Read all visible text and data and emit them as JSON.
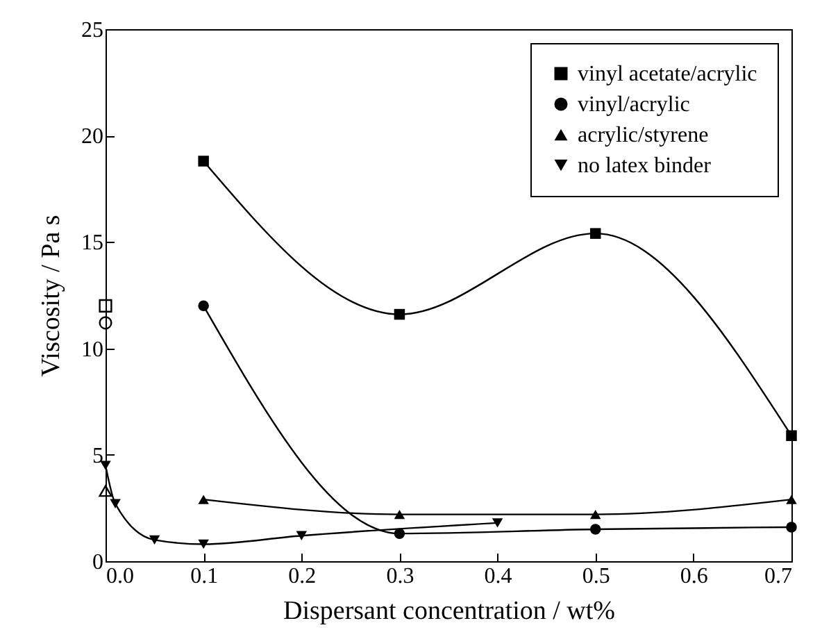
{
  "chart_data": {
    "type": "line",
    "xlabel": "Dispersant concentration / wt%",
    "ylabel": "Viscosity / Pa s",
    "xlim": [
      0,
      0.7
    ],
    "ylim": [
      0,
      25
    ],
    "xticks": [
      {
        "value": 0,
        "label": "0.0"
      },
      0.1,
      0.2,
      0.3,
      0.4,
      0.5,
      0.6,
      0.7
    ],
    "yticks": [
      0,
      5,
      10,
      15,
      20,
      25
    ],
    "grid": false,
    "legend": "top right",
    "line_style": "solid",
    "series": [
      {
        "name": "vinyl acetate/acrylic",
        "marker": "square",
        "color": "#000000",
        "x": [
          0.1,
          0.3,
          0.5,
          0.7
        ],
        "values": [
          18.8,
          11.6,
          15.4,
          5.9
        ]
      },
      {
        "name": "vinyl/acrylic",
        "marker": "circle",
        "color": "#000000",
        "x": [
          0.1,
          0.3,
          0.5,
          0.7
        ],
        "values": [
          12.0,
          1.3,
          1.5,
          1.6
        ]
      },
      {
        "name": "acrylic/styrene",
        "marker": "triangle",
        "color": "#000000",
        "x": [
          0.1,
          0.3,
          0.5,
          0.7
        ],
        "values": [
          2.9,
          2.2,
          2.2,
          2.9
        ]
      },
      {
        "name": "no latex binder",
        "marker": "triangle-down",
        "color": "#000000",
        "x": [
          0,
          0.01,
          0.05,
          0.1,
          0.2,
          0.4
        ],
        "values": [
          4.5,
          2.7,
          1.0,
          0.8,
          1.2,
          1.8
        ]
      },
      {
        "type": "scatter",
        "marker": "square",
        "color": "#000000",
        "x": [
          0
        ],
        "values": [
          12.0
        ]
      },
      {
        "type": "scatter",
        "marker": "circle",
        "color": "#000000",
        "x": [
          0
        ],
        "values": [
          11.2
        ]
      },
      {
        "type": "scatter",
        "marker": "triangle",
        "color": "#000000",
        "x": [
          0
        ],
        "values": [
          3.3
        ]
      }
    ]
  }
}
